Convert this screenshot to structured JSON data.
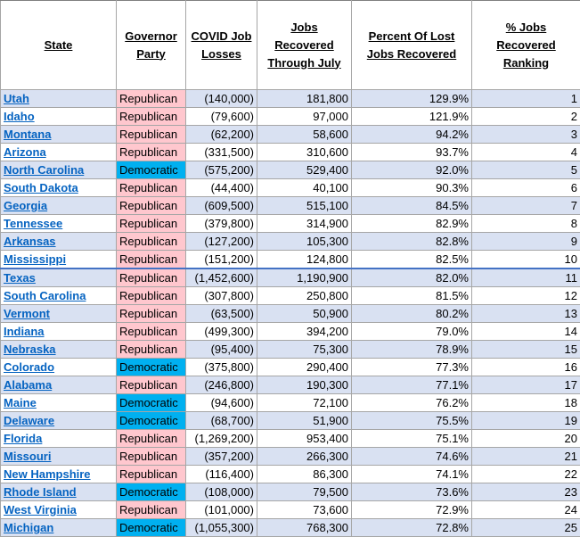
{
  "headers": {
    "state": "State",
    "party": "Governor Party",
    "losses": "COVID Job Losses",
    "recovered": "Jobs Recovered Through July",
    "percent": "Percent Of Lost Jobs Recovered",
    "ranking": "% Jobs Recovered Ranking"
  },
  "colors": {
    "republican": "#ffc7ce",
    "democratic": "#00b0f0",
    "band": "#d9e1f2",
    "link": "#0563c1"
  },
  "rows": [
    {
      "state": "Utah",
      "link": true,
      "party": "Republican",
      "losses": "(140,000)",
      "recovered": "181,800",
      "percent": "129.9%",
      "rank": "1"
    },
    {
      "state": "Idaho",
      "link": true,
      "party": "Republican",
      "losses": "(79,600)",
      "recovered": "97,000",
      "percent": "121.9%",
      "rank": "2"
    },
    {
      "state": "Montana",
      "link": true,
      "party": "Republican",
      "losses": "(62,200)",
      "recovered": "58,600",
      "percent": "94.2%",
      "rank": "3"
    },
    {
      "state": "Arizona",
      "link": true,
      "party": "Republican",
      "losses": "(331,500)",
      "recovered": "310,600",
      "percent": "93.7%",
      "rank": "4"
    },
    {
      "state": "North Carolina",
      "link": true,
      "party": "Democratic",
      "losses": "(575,200)",
      "recovered": "529,400",
      "percent": "92.0%",
      "rank": "5"
    },
    {
      "state": "South Dakota",
      "link": true,
      "party": "Republican",
      "losses": "(44,400)",
      "recovered": "40,100",
      "percent": "90.3%",
      "rank": "6"
    },
    {
      "state": "Georgia",
      "link": true,
      "party": "Republican",
      "losses": "(609,500)",
      "recovered": "515,100",
      "percent": "84.5%",
      "rank": "7"
    },
    {
      "state": "Tennessee",
      "link": true,
      "party": "Republican",
      "losses": "(379,800)",
      "recovered": "314,900",
      "percent": "82.9%",
      "rank": "8"
    },
    {
      "state": "Arkansas",
      "link": true,
      "party": "Republican",
      "losses": "(127,200)",
      "recovered": "105,300",
      "percent": "82.8%",
      "rank": "9"
    },
    {
      "state": "Mississippi",
      "link": true,
      "party": "Republican",
      "losses": "(151,200)",
      "recovered": "124,800",
      "percent": "82.5%",
      "rank": "10"
    },
    {
      "state": "Texas",
      "link": true,
      "party": "Republican",
      "losses": "(1,452,600)",
      "recovered": "1,190,900",
      "percent": "82.0%",
      "rank": "11"
    },
    {
      "state": "South Carolina",
      "link": true,
      "party": "Republican",
      "losses": "(307,800)",
      "recovered": "250,800",
      "percent": "81.5%",
      "rank": "12"
    },
    {
      "state": "Vermont",
      "link": true,
      "party": "Republican",
      "losses": "(63,500)",
      "recovered": "50,900",
      "percent": "80.2%",
      "rank": "13"
    },
    {
      "state": "Indiana",
      "link": true,
      "party": "Republican",
      "losses": "(499,300)",
      "recovered": "394,200",
      "percent": "79.0%",
      "rank": "14"
    },
    {
      "state": "Nebraska",
      "link": true,
      "party": "Republican",
      "losses": "(95,400)",
      "recovered": "75,300",
      "percent": "78.9%",
      "rank": "15"
    },
    {
      "state": "Colorado",
      "link": true,
      "party": "Democratic",
      "losses": "(375,800)",
      "recovered": "290,400",
      "percent": "77.3%",
      "rank": "16"
    },
    {
      "state": "Alabama",
      "link": true,
      "party": "Republican",
      "losses": "(246,800)",
      "recovered": "190,300",
      "percent": "77.1%",
      "rank": "17"
    },
    {
      "state": "Maine",
      "link": true,
      "party": "Democratic",
      "losses": "(94,600)",
      "recovered": "72,100",
      "percent": "76.2%",
      "rank": "18"
    },
    {
      "state": "Delaware",
      "link": true,
      "party": "Democratic",
      "losses": "(68,700)",
      "recovered": "51,900",
      "percent": "75.5%",
      "rank": "19"
    },
    {
      "state": "Florida",
      "link": true,
      "party": "Republican",
      "losses": "(1,269,200)",
      "recovered": "953,400",
      "percent": "75.1%",
      "rank": "20"
    },
    {
      "state": "Missouri",
      "link": true,
      "party": "Republican",
      "losses": "(357,200)",
      "recovered": "266,300",
      "percent": "74.6%",
      "rank": "21"
    },
    {
      "state": "New Hampshire",
      "link": true,
      "party": "Republican",
      "losses": "(116,400)",
      "recovered": "86,300",
      "percent": "74.1%",
      "rank": "22"
    },
    {
      "state": "Rhode Island",
      "link": true,
      "party": "Democratic",
      "losses": "(108,000)",
      "recovered": "79,500",
      "percent": "73.6%",
      "rank": "23"
    },
    {
      "state": "West Virginia",
      "link": true,
      "party": "Republican",
      "losses": "(101,000)",
      "recovered": "73,600",
      "percent": "72.9%",
      "rank": "24"
    },
    {
      "state": "Michigan",
      "link": true,
      "party": "Democratic",
      "losses": "(1,055,300)",
      "recovered": "768,300",
      "percent": "72.8%",
      "rank": "25"
    }
  ]
}
